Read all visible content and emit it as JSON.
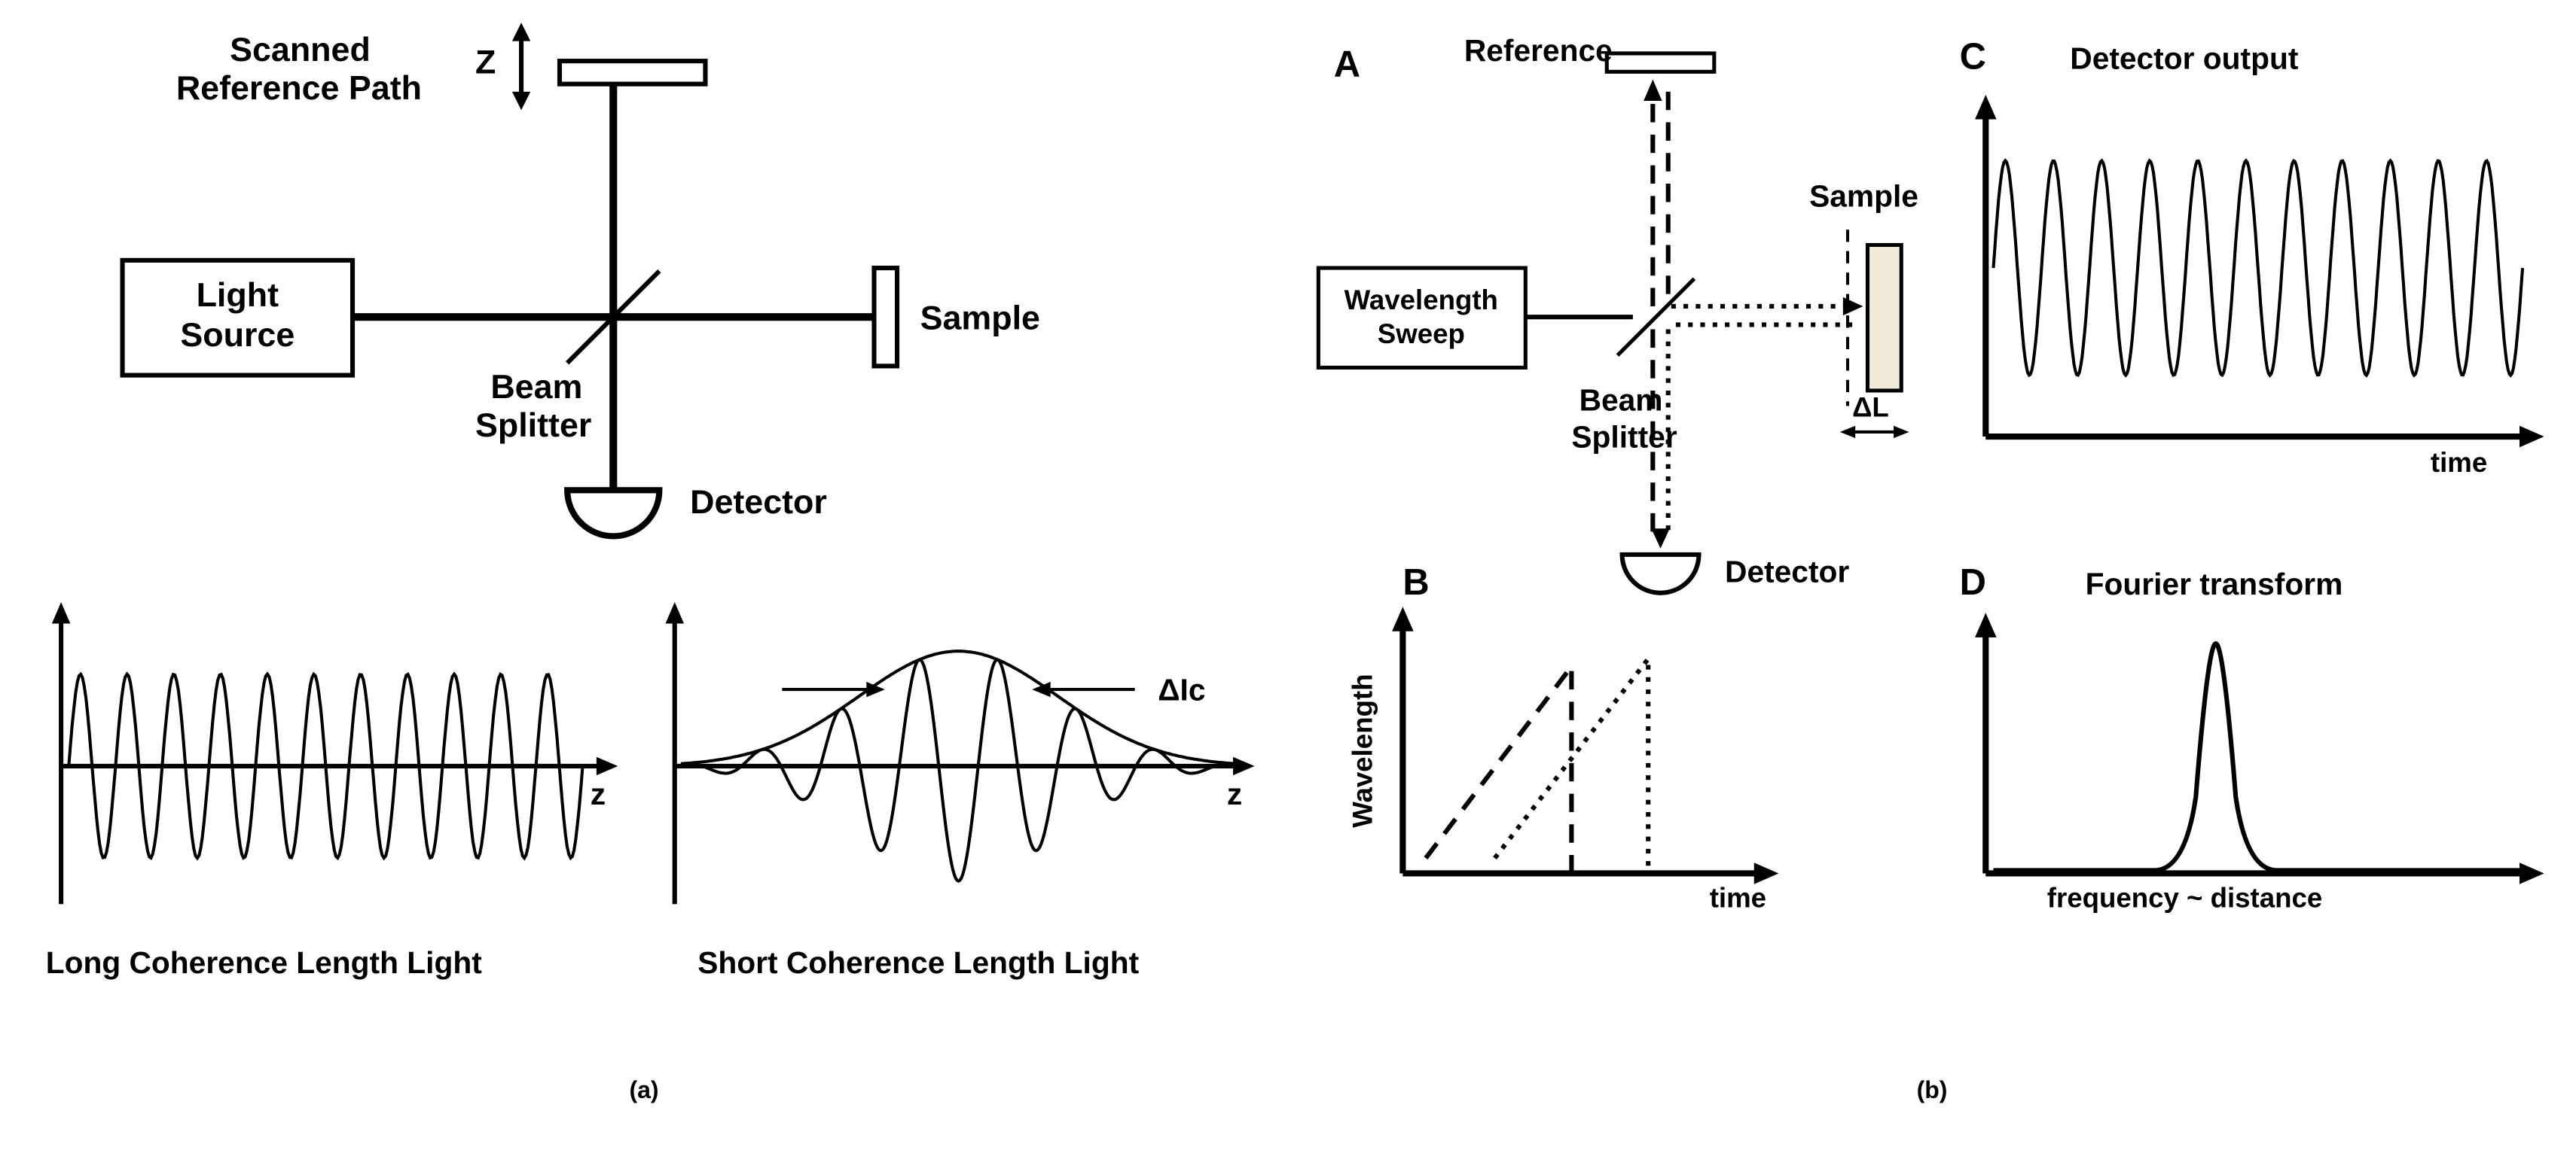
{
  "figure": {
    "background": "#ffffff",
    "stroke": "#000000",
    "fill_none": "none",
    "panel_a": {
      "label": "(a)",
      "light_source": "Light\nSource",
      "scanned_ref": "Scanned\nReference Path",
      "z_axis": "Z",
      "beam_splitter": "Beam\nSplitter",
      "sample": "Sample",
      "detector": "Detector",
      "long_coherence": "Long Coherence Length Light",
      "short_coherence": "Short Coherence Length Light",
      "z_label": "z",
      "delta_lc": "ΔIc",
      "box_stroke_width": 3,
      "line_stroke_width": 4,
      "thin_line_width": 2,
      "font_size_label": 22,
      "font_size_caption": 20,
      "wave_amplitude": 60,
      "wave_cycles_long": 11,
      "gaussian_cycles": 7
    },
    "panel_b": {
      "label": "(b)",
      "sub_a": "A",
      "sub_b": "B",
      "sub_c": "C",
      "sub_d": "D",
      "reference": "Reference",
      "wavelength_sweep": "Wavelength\nSweep",
      "beam_splitter": "Beam\nSplitter",
      "sample": "Sample",
      "detector": "Detector",
      "delta_l": "ΔL",
      "wavelength_label": "Wavelength",
      "time_label": "time",
      "detector_output": "Detector output",
      "fourier_transform": "Fourier transform",
      "freq_distance": "frequency ~ distance",
      "box_stroke_width": 2.5,
      "line_stroke_width": 3,
      "font_size_label": 20,
      "font_size_sub": 24,
      "sample_fill": "#f0ead8",
      "dash_pattern": "12,8",
      "dot_pattern": "3,5",
      "detector_wave_cycles": 11,
      "detector_wave_amplitude": 70
    }
  }
}
